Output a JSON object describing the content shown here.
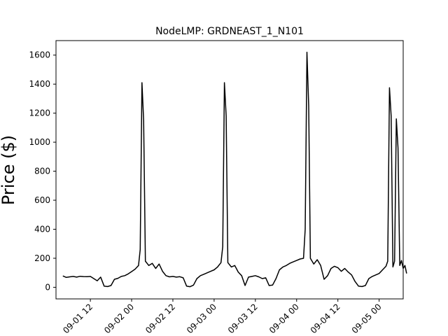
{
  "chart_data": {
    "type": "line",
    "title": "NodeLMP: GRDNEAST_1_N101",
    "xlabel": "",
    "ylabel": "Price ($)",
    "ylim": [
      -80,
      1700
    ],
    "xlim": [
      "09-01 02:00",
      "09-05 07:00"
    ],
    "yticks": [
      0,
      200,
      400,
      600,
      800,
      1000,
      1200,
      1400,
      1600
    ],
    "xticks": [
      {
        "t": "09-01 12:00",
        "label": "09-01 12"
      },
      {
        "t": "09-02 00:00",
        "label": "09-02 00"
      },
      {
        "t": "09-02 12:00",
        "label": "09-02 12"
      },
      {
        "t": "09-03 00:00",
        "label": "09-03 00"
      },
      {
        "t": "09-03 12:00",
        "label": "09-03 12"
      },
      {
        "t": "09-04 00:00",
        "label": "09-04 00"
      },
      {
        "t": "09-04 12:00",
        "label": "09-04 12"
      },
      {
        "t": "09-05 00:00",
        "label": "09-05 00"
      }
    ],
    "grid": false,
    "series": [
      {
        "color": "#000000",
        "points": [
          [
            "09-01 04:00",
            78
          ],
          [
            "09-01 05:00",
            68
          ],
          [
            "09-01 06:00",
            72
          ],
          [
            "09-01 07:00",
            75
          ],
          [
            "09-01 08:00",
            70
          ],
          [
            "09-01 09:00",
            76
          ],
          [
            "09-01 10:00",
            74
          ],
          [
            "09-01 11:00",
            73
          ],
          [
            "09-01 12:00",
            75
          ],
          [
            "09-01 13:00",
            60
          ],
          [
            "09-01 14:00",
            45
          ],
          [
            "09-01 15:00",
            70
          ],
          [
            "09-01 16:00",
            8
          ],
          [
            "09-01 17:00",
            5
          ],
          [
            "09-01 18:00",
            12
          ],
          [
            "09-01 19:00",
            55
          ],
          [
            "09-01 20:00",
            62
          ],
          [
            "09-01 21:00",
            75
          ],
          [
            "09-01 22:00",
            80
          ],
          [
            "09-01 23:00",
            92
          ],
          [
            "09-02 00:00",
            108
          ],
          [
            "09-02 01:00",
            125
          ],
          [
            "09-02 02:00",
            150
          ],
          [
            "09-02 02:30",
            260
          ],
          [
            "09-02 03:00",
            1410
          ],
          [
            "09-02 03:30",
            1150
          ],
          [
            "09-02 04:00",
            180
          ],
          [
            "09-02 05:00",
            150
          ],
          [
            "09-02 06:00",
            165
          ],
          [
            "09-02 07:00",
            130
          ],
          [
            "09-02 08:00",
            160
          ],
          [
            "09-02 09:00",
            110
          ],
          [
            "09-02 10:00",
            80
          ],
          [
            "09-02 11:00",
            72
          ],
          [
            "09-02 12:00",
            75
          ],
          [
            "09-02 13:00",
            70
          ],
          [
            "09-02 14:00",
            73
          ],
          [
            "09-02 15:00",
            65
          ],
          [
            "09-02 16:00",
            8
          ],
          [
            "09-02 17:00",
            4
          ],
          [
            "09-02 18:00",
            15
          ],
          [
            "09-02 19:00",
            60
          ],
          [
            "09-02 20:00",
            80
          ],
          [
            "09-02 21:00",
            90
          ],
          [
            "09-02 22:00",
            100
          ],
          [
            "09-02 23:00",
            110
          ],
          [
            "09-03 00:00",
            120
          ],
          [
            "09-03 01:00",
            140
          ],
          [
            "09-03 02:00",
            170
          ],
          [
            "09-03 02:30",
            280
          ],
          [
            "09-03 03:00",
            1410
          ],
          [
            "09-03 03:30",
            1180
          ],
          [
            "09-03 04:00",
            170
          ],
          [
            "09-03 05:00",
            140
          ],
          [
            "09-03 06:00",
            150
          ],
          [
            "09-03 07:00",
            105
          ],
          [
            "09-03 08:00",
            80
          ],
          [
            "09-03 09:00",
            12
          ],
          [
            "09-03 10:00",
            70
          ],
          [
            "09-03 11:00",
            75
          ],
          [
            "09-03 12:00",
            80
          ],
          [
            "09-03 13:00",
            72
          ],
          [
            "09-03 14:00",
            60
          ],
          [
            "09-03 15:00",
            65
          ],
          [
            "09-03 16:00",
            12
          ],
          [
            "09-03 17:00",
            15
          ],
          [
            "09-03 18:00",
            60
          ],
          [
            "09-03 19:00",
            120
          ],
          [
            "09-03 20:00",
            140
          ],
          [
            "09-03 21:00",
            150
          ],
          [
            "09-03 22:00",
            165
          ],
          [
            "09-03 23:00",
            175
          ],
          [
            "09-04 00:00",
            185
          ],
          [
            "09-04 01:00",
            195
          ],
          [
            "09-04 02:00",
            200
          ],
          [
            "09-04 02:30",
            400
          ],
          [
            "09-04 03:00",
            1620
          ],
          [
            "09-04 03:30",
            1250
          ],
          [
            "09-04 04:00",
            200
          ],
          [
            "09-04 05:00",
            160
          ],
          [
            "09-04 06:00",
            190
          ],
          [
            "09-04 07:00",
            150
          ],
          [
            "09-04 08:00",
            55
          ],
          [
            "09-04 09:00",
            80
          ],
          [
            "09-04 10:00",
            130
          ],
          [
            "09-04 11:00",
            145
          ],
          [
            "09-04 12:00",
            135
          ],
          [
            "09-04 13:00",
            110
          ],
          [
            "09-04 14:00",
            130
          ],
          [
            "09-04 15:00",
            105
          ],
          [
            "09-04 16:00",
            85
          ],
          [
            "09-04 17:00",
            40
          ],
          [
            "09-04 18:00",
            8
          ],
          [
            "09-04 19:00",
            5
          ],
          [
            "09-04 20:00",
            12
          ],
          [
            "09-04 21:00",
            60
          ],
          [
            "09-04 22:00",
            75
          ],
          [
            "09-04 23:00",
            85
          ],
          [
            "09-05 00:00",
            95
          ],
          [
            "09-05 01:00",
            120
          ],
          [
            "09-05 02:00",
            145
          ],
          [
            "09-05 02:30",
            180
          ],
          [
            "09-05 03:00",
            1375
          ],
          [
            "09-05 03:30",
            1180
          ],
          [
            "09-05 04:00",
            140
          ],
          [
            "09-05 04:30",
            180
          ],
          [
            "09-05 05:00",
            1160
          ],
          [
            "09-05 05:30",
            960
          ],
          [
            "09-05 06:00",
            150
          ],
          [
            "09-05 06:30",
            185
          ],
          [
            "09-05 07:00",
            130
          ],
          [
            "09-05 07:30",
            150
          ],
          [
            "09-05 08:00",
            95
          ]
        ]
      }
    ]
  }
}
